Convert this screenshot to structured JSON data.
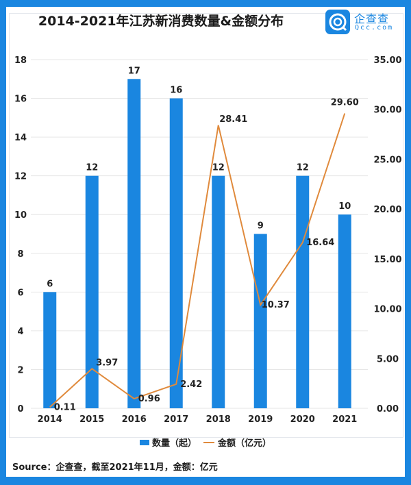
{
  "title": "2014-2021年江苏新消费数量&金额分布",
  "logo": {
    "cn": "企查查",
    "en": "Qcc.com"
  },
  "source": "Source：企查查，截至2021年11月，金额：亿元",
  "colors": {
    "bar": "#1a86e0",
    "line": "#e08a3c",
    "grid": "#e6e6e6",
    "frame": "#1a86e0"
  },
  "chart_data": {
    "type": "bar+line",
    "title": "2014-2021年江苏新消费数量&金额分布",
    "categories": [
      "2014",
      "2015",
      "2016",
      "2017",
      "2018",
      "2019",
      "2020",
      "2021"
    ],
    "series": [
      {
        "name": "数量（起）",
        "type": "bar",
        "axis": "left",
        "values": [
          6,
          12,
          17,
          16,
          12,
          9,
          12,
          10
        ],
        "labels": [
          "6",
          "12",
          "17",
          "16",
          "12",
          "9",
          "12",
          "10"
        ]
      },
      {
        "name": "金额（亿元）",
        "type": "line",
        "axis": "right",
        "values": [
          0.11,
          3.97,
          0.96,
          2.42,
          28.41,
          10.37,
          16.64,
          29.6
        ],
        "labels": [
          "0.11",
          "3.97",
          "0.96",
          "2.42",
          "28.41",
          "10.37",
          "16.64",
          "29.60"
        ]
      }
    ],
    "y_left": {
      "min": 0,
      "max": 18,
      "ticks": [
        "0",
        "2",
        "4",
        "6",
        "8",
        "10",
        "12",
        "14",
        "16",
        "18"
      ]
    },
    "y_right": {
      "min": 0,
      "max": 35,
      "ticks": [
        "0.00",
        "5.00",
        "10.00",
        "15.00",
        "20.00",
        "25.00",
        "30.00",
        "35.00"
      ]
    },
    "grid": true,
    "legend": "bottom-center"
  }
}
